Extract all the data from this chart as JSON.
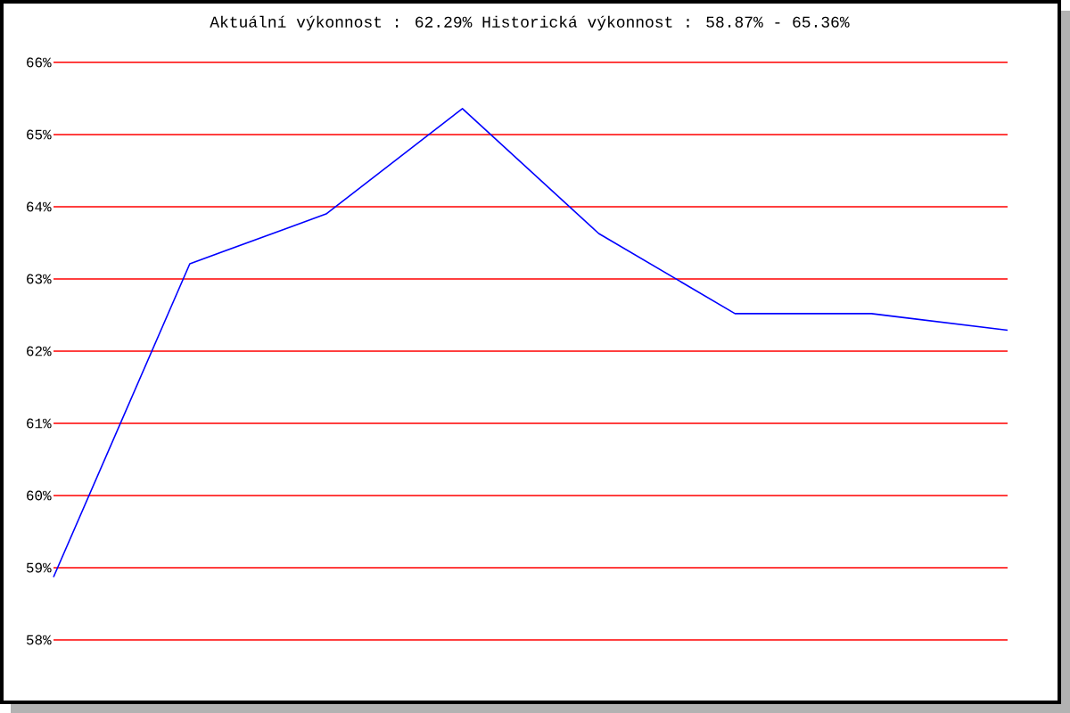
{
  "chart_data": {
    "type": "line",
    "title": "Aktuální výkonnost : 62.29%  Historická výkonnost : 58.87% - 65.36%",
    "categories": [
      null,
      null,
      null,
      null,
      null,
      null,
      null,
      null
    ],
    "series": [
      {
        "color": "#0000ff",
        "values": [
          58.87,
          63.21,
          63.9,
          65.36,
          63.63,
          62.52,
          62.52,
          62.29
        ]
      }
    ],
    "ylim": [
      58,
      66
    ],
    "yticks": [
      {
        "value": 58,
        "label": "58%"
      },
      {
        "value": 59,
        "label": "59%"
      },
      {
        "value": 60,
        "label": "60%"
      },
      {
        "value": 61,
        "label": "61%"
      },
      {
        "value": 62,
        "label": "62%"
      },
      {
        "value": 63,
        "label": "63%"
      },
      {
        "value": 64,
        "label": "64%"
      },
      {
        "value": 65,
        "label": "65%"
      },
      {
        "value": 66,
        "label": "66%"
      }
    ],
    "grid": "y",
    "tick_labels": "y",
    "marker": "none",
    "line_style": "solid"
  }
}
